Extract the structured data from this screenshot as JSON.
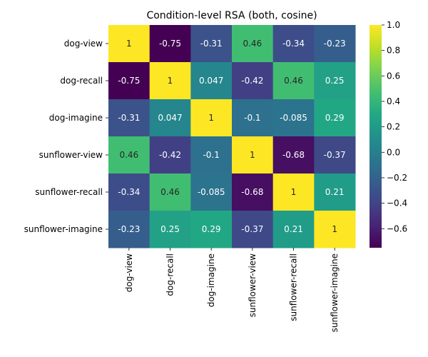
{
  "chart_data": {
    "type": "heatmap",
    "title": "Condition-level RSA (both, cosine)",
    "xlabel": "",
    "ylabel": "",
    "rows": [
      "dog-view",
      "dog-recall",
      "dog-imagine",
      "sunflower-view",
      "sunflower-recall",
      "sunflower-imagine"
    ],
    "columns": [
      "dog-view",
      "dog-recall",
      "dog-imagine",
      "sunflower-view",
      "sunflower-recall",
      "sunflower-imagine"
    ],
    "values": [
      [
        1,
        -0.75,
        -0.31,
        0.46,
        -0.34,
        -0.23
      ],
      [
        -0.75,
        1,
        0.047,
        -0.42,
        0.46,
        0.25
      ],
      [
        -0.31,
        0.047,
        1,
        -0.1,
        -0.085,
        0.29
      ],
      [
        0.46,
        -0.42,
        -0.1,
        1,
        -0.68,
        -0.37
      ],
      [
        -0.34,
        0.46,
        -0.085,
        -0.68,
        1,
        0.21
      ],
      [
        -0.23,
        0.25,
        0.29,
        -0.37,
        0.21,
        1
      ]
    ],
    "labels": [
      [
        "1",
        "-0.75",
        "-0.31",
        "0.46",
        "-0.34",
        "-0.23"
      ],
      [
        "-0.75",
        "1",
        "0.047",
        "-0.42",
        "0.46",
        "0.25"
      ],
      [
        "-0.31",
        "0.047",
        "1",
        "-0.1",
        "-0.085",
        "0.29"
      ],
      [
        "0.46",
        "-0.42",
        "-0.1",
        "1",
        "-0.68",
        "-0.37"
      ],
      [
        "-0.34",
        "0.46",
        "-0.085",
        "-0.68",
        "1",
        "0.21"
      ],
      [
        "-0.23",
        "0.25",
        "0.29",
        "-0.37",
        "0.21",
        "1"
      ]
    ],
    "colormap": "viridis",
    "vmin": -0.75,
    "vmax": 1.0,
    "colorbar_ticks": [
      1.0,
      0.8,
      0.6,
      0.4,
      0.2,
      0.0,
      -0.2,
      -0.4,
      -0.6
    ],
    "colorbar_tick_labels": [
      "1.0",
      "0.8",
      "0.6",
      "0.4",
      "0.2",
      "0.0",
      "−0.2",
      "−0.4",
      "−0.6"
    ]
  }
}
